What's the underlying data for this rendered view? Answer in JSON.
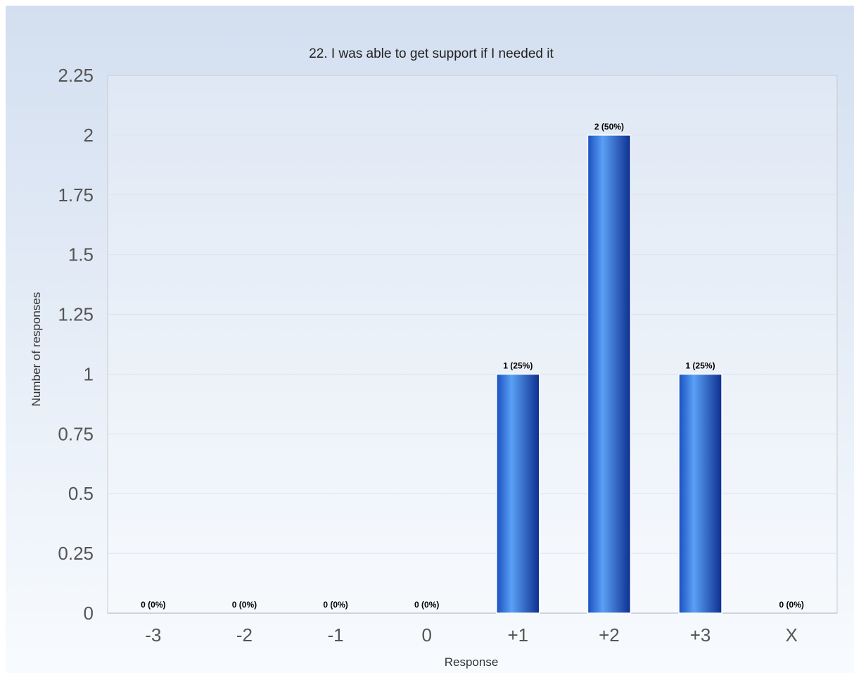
{
  "chart_data": {
    "type": "bar",
    "title": "22. I was able to get support if I needed it",
    "xlabel": "Response",
    "ylabel": "Number of responses",
    "categories": [
      "-3",
      "-2",
      "-1",
      "0",
      "+1",
      "+2",
      "+3",
      "X"
    ],
    "values": [
      0,
      0,
      0,
      0,
      1,
      2,
      1,
      0
    ],
    "data_labels": [
      "0 (0%)",
      "0 (0%)",
      "0 (0%)",
      "0 (0%)",
      "1 (25%)",
      "2 (50%)",
      "1 (25%)",
      "0 (0%)"
    ],
    "ylim": [
      0,
      2.25
    ],
    "yticks": [
      "0",
      "0.25",
      "0.5",
      "0.75",
      "1",
      "1.25",
      "1.5",
      "1.75",
      "2",
      "2.25"
    ],
    "grid": true,
    "legend": "none",
    "colors": {
      "bar_dark": "#0d2f8f",
      "bar_light": "#5aa0f5",
      "background_top": "#d3dff0",
      "background_bottom": "#f8fbfe"
    }
  }
}
